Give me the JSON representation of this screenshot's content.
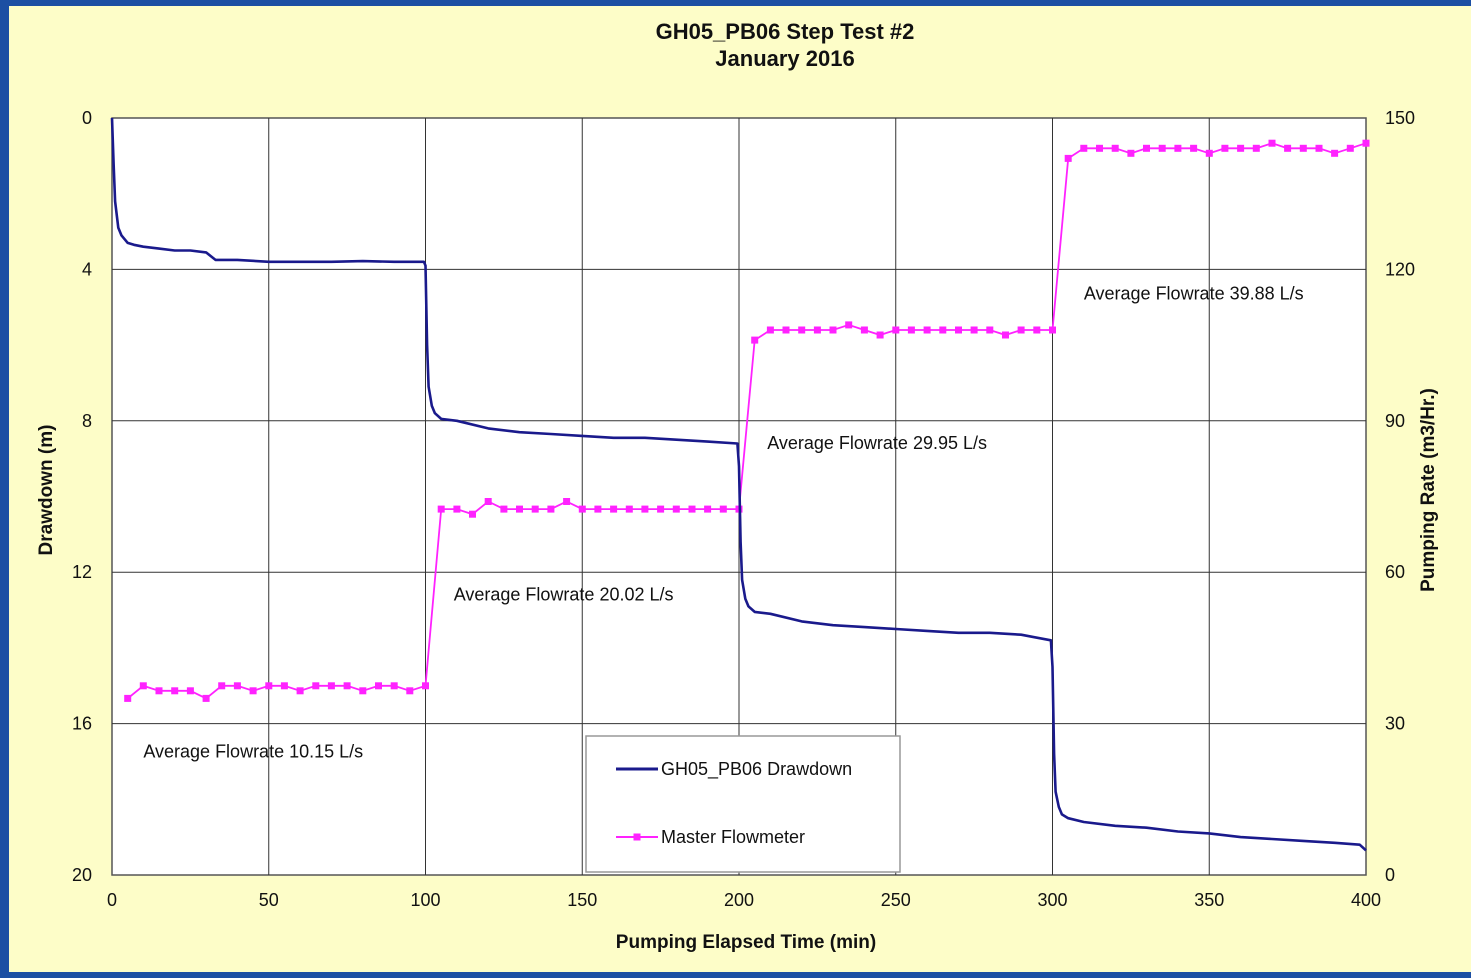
{
  "chart_data": {
    "type": "line",
    "title": "GH05_PB06 Step Test #2",
    "subtitle": "January 2016",
    "xlabel": "Pumping  Elapsed  Time (min)",
    "ylabel_left": "Drawdown (m)",
    "ylabel_right": "Pumping Rate (m3/Hr.)",
    "xlim": [
      0,
      400
    ],
    "ylim_left": [
      0,
      20
    ],
    "ylim_left_inverted": true,
    "ylim_right": [
      0,
      150
    ],
    "x_ticks": [
      "0",
      "50",
      "100",
      "150",
      "200",
      "250",
      "300",
      "350",
      "400"
    ],
    "y_left_ticks": [
      "0",
      "4",
      "8",
      "12",
      "16",
      "20"
    ],
    "y_right_ticks": [
      "150",
      "120",
      "90",
      "60",
      "30",
      "0"
    ],
    "grid": true,
    "legend_position": "bottom-center",
    "colors": {
      "drawdown": "#1a1a8c",
      "flowmeter": "#ff22ff",
      "background": "#fdfdc8",
      "frame": "#1c4fa3"
    },
    "series": [
      {
        "name": "GH05_PB06 Drawdown",
        "axis": "left",
        "x": [
          0,
          0.5,
          1,
          2,
          3,
          4,
          5,
          7,
          10,
          15,
          20,
          25,
          30,
          33,
          40,
          50,
          60,
          70,
          80,
          90,
          99.5,
          100,
          100.5,
          101,
          102,
          103,
          105,
          110,
          120,
          130,
          140,
          150,
          160,
          170,
          180,
          190,
          199.5,
          200,
          200.5,
          201,
          202,
          203,
          205,
          210,
          220,
          230,
          240,
          250,
          260,
          270,
          280,
          290,
          299.5,
          300,
          300.5,
          301,
          302,
          303,
          305,
          310,
          320,
          330,
          340,
          350,
          360,
          370,
          380,
          390,
          398,
          400
        ],
        "values": [
          0,
          1.2,
          2.2,
          2.9,
          3.1,
          3.2,
          3.3,
          3.35,
          3.4,
          3.45,
          3.5,
          3.5,
          3.55,
          3.75,
          3.75,
          3.8,
          3.8,
          3.8,
          3.78,
          3.8,
          3.8,
          3.9,
          6.0,
          7.1,
          7.6,
          7.8,
          7.95,
          8.0,
          8.2,
          8.3,
          8.35,
          8.4,
          8.45,
          8.45,
          8.5,
          8.55,
          8.6,
          9.2,
          11.2,
          12.2,
          12.7,
          12.9,
          13.05,
          13.1,
          13.3,
          13.4,
          13.45,
          13.5,
          13.55,
          13.6,
          13.6,
          13.65,
          13.8,
          14.5,
          16.8,
          17.8,
          18.2,
          18.4,
          18.5,
          18.6,
          18.7,
          18.75,
          18.85,
          18.9,
          19.0,
          19.05,
          19.1,
          19.15,
          19.2,
          19.35
        ]
      },
      {
        "name": "Master Flowmeter",
        "axis": "right",
        "x": [
          5,
          10,
          15,
          20,
          25,
          30,
          35,
          40,
          45,
          50,
          55,
          60,
          65,
          70,
          75,
          80,
          85,
          90,
          95,
          100,
          105,
          110,
          115,
          120,
          125,
          130,
          135,
          140,
          145,
          150,
          155,
          160,
          165,
          170,
          175,
          180,
          185,
          190,
          195,
          200,
          205,
          210,
          215,
          220,
          225,
          230,
          235,
          240,
          245,
          250,
          255,
          260,
          265,
          270,
          275,
          280,
          285,
          290,
          295,
          300,
          305,
          310,
          315,
          320,
          325,
          330,
          335,
          340,
          345,
          350,
          355,
          360,
          365,
          370,
          375,
          380,
          385,
          390,
          395,
          400
        ],
        "values": [
          35,
          37.5,
          36.5,
          36.5,
          36.5,
          35,
          37.5,
          37.5,
          36.5,
          37.5,
          37.5,
          36.5,
          37.5,
          37.5,
          37.5,
          36.5,
          37.5,
          37.5,
          36.5,
          37.5,
          72.5,
          72.5,
          71.5,
          74,
          72.5,
          72.5,
          72.5,
          72.5,
          74,
          72.5,
          72.5,
          72.5,
          72.5,
          72.5,
          72.5,
          72.5,
          72.5,
          72.5,
          72.5,
          72.5,
          106,
          108,
          108,
          108,
          108,
          108,
          109,
          108,
          107,
          108,
          108,
          108,
          108,
          108,
          108,
          108,
          107,
          108,
          108,
          108,
          142,
          144,
          144,
          144,
          143,
          144,
          144,
          144,
          144,
          143,
          144,
          144,
          144,
          145,
          144,
          144,
          144,
          143,
          144,
          145
        ]
      }
    ],
    "annotations": [
      {
        "text": "Average Flowrate 10.15 L/s",
        "x": 10,
        "y_left": 16.9
      },
      {
        "text": "Average Flowrate 20.02 L/s",
        "x": 109,
        "y_left": 12.75
      },
      {
        "text": "Average Flowrate 29.95 L/s",
        "x": 209,
        "y_left": 8.75
      },
      {
        "text": "Average Flowrate 39.88 L/s",
        "x": 310,
        "y_left": 4.8
      }
    ]
  }
}
